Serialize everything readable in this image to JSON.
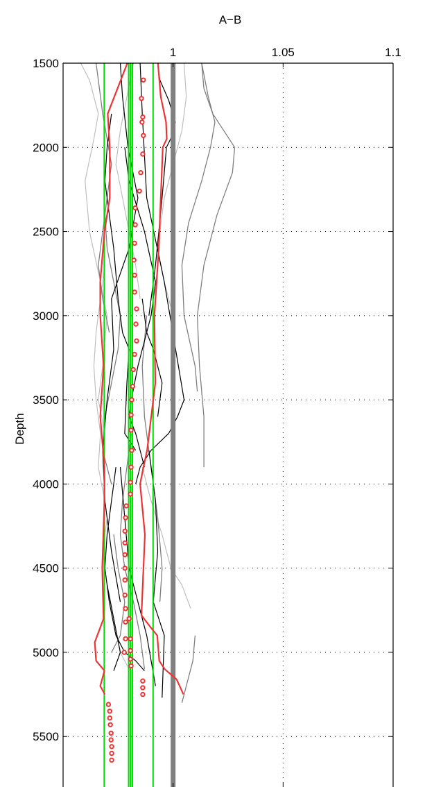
{
  "chart_data": {
    "type": "line",
    "title": "A−B",
    "xlabel": "",
    "ylabel": "Depth",
    "xlim": [
      0.95,
      1.1
    ],
    "ylim": [
      1500,
      5800
    ],
    "y_reversed": true,
    "x_axis_position": "top",
    "x_ticks": [
      1,
      1.05,
      1.1
    ],
    "x_tick_labels": [
      "1",
      "1.05",
      "1.1"
    ],
    "y_ticks": [
      1500,
      2000,
      2500,
      3000,
      3500,
      4000,
      4500,
      5000,
      5500
    ],
    "y_tick_labels": [
      "1500",
      "2000",
      "2500",
      "3000",
      "3500",
      "4000",
      "4500",
      "5000",
      "5500"
    ],
    "grid": true,
    "grid_style": "dotted",
    "colors": {
      "reference": "#808080",
      "green": "#00dd00",
      "red": "#ee3333",
      "black": "#000000",
      "gray": "#7f7f7f",
      "lightgray": "#bfbfbf"
    },
    "reference_line": {
      "x": 1,
      "color": "#808080"
    },
    "green_lines": [
      {
        "x": 0.9687
      },
      {
        "x": 0.9798
      },
      {
        "x": 0.9806
      },
      {
        "x": 0.9815
      },
      {
        "x": 0.9909
      }
    ],
    "red_envelope_left": {
      "x": [
        0.9792,
        0.9703,
        0.9712,
        0.9712,
        0.9688,
        0.9669,
        0.9669,
        0.9684,
        0.9669,
        0.9688,
        0.9688,
        0.9678,
        0.9684,
        0.9644,
        0.965,
        0.9688,
        0.9669,
        0.969
      ],
      "y": [
        1500,
        1800,
        2000,
        2300,
        2500,
        2800,
        3000,
        3300,
        3600,
        3900,
        4100,
        4500,
        4800,
        4940,
        5050,
        5110,
        5200,
        5250
      ]
    },
    "red_envelope_right": {
      "x": [
        0.9931,
        0.9944,
        0.9968,
        0.9971,
        0.9953,
        0.9944,
        0.9935,
        0.9915,
        0.9919,
        0.9882,
        0.9862,
        0.985,
        0.9872,
        0.9856,
        0.9897,
        0.9928,
        0.9937,
        0.9962,
        1.0016,
        1.0047
      ],
      "y": [
        1500,
        1700,
        1850,
        1950,
        2000,
        2300,
        2600,
        3000,
        3400,
        3800,
        3920,
        4000,
        4300,
        4780,
        4850,
        4900,
        5050,
        5100,
        5160,
        5250
      ]
    },
    "red_circle_markers": {
      "x": [
        0.9865,
        0.9856,
        0.9862,
        0.9859,
        0.9865,
        0.9862,
        0.9853,
        0.9847,
        0.9828,
        0.9828,
        0.9825,
        0.9822,
        0.9825,
        0.9825,
        0.9834,
        0.9831,
        0.9834,
        0.9825,
        0.9819,
        0.9816,
        0.9812,
        0.9809,
        0.9809,
        0.9812,
        0.9809,
        0.9806,
        0.9806,
        0.9787,
        0.9784,
        0.9781,
        0.9781,
        0.9781,
        0.9781,
        0.9781,
        0.9781,
        0.9784,
        0.9784,
        0.9784,
        0.9778,
        0.98,
        0.9806,
        0.9806,
        0.9806,
        0.9809,
        0.9862,
        0.9862,
        0.9862,
        0.9706,
        0.9712,
        0.9712,
        0.9715,
        0.9718,
        0.9718,
        0.9721,
        0.9721,
        0.9721
      ],
      "y": [
        1600,
        1710,
        1820,
        1850,
        1930,
        2040,
        2150,
        2260,
        2360,
        2460,
        2570,
        2670,
        2760,
        2860,
        2960,
        3050,
        3150,
        3230,
        3320,
        3420,
        3500,
        3590,
        3680,
        3800,
        3900,
        3990,
        4060,
        4130,
        4200,
        4280,
        4350,
        4420,
        4500,
        4570,
        4660,
        4740,
        4820,
        4920,
        5000,
        4800,
        4920,
        4990,
        5040,
        5080,
        5170,
        5210,
        5250,
        5310,
        5350,
        5390,
        5430,
        5480,
        5520,
        5560,
        5600,
        5640
      ]
    },
    "series_black": [
      {
        "x": [
          0.976,
          0.977,
          0.9795,
          0.984,
          0.98,
          0.972,
          0.973,
          0.97,
          0.968,
          0.969,
          0.972,
          0.976
        ],
        "y": [
          1500,
          1700,
          2000,
          2300,
          2600,
          2900,
          3200,
          3500,
          3800,
          4100,
          4400,
          4700
        ]
      },
      {
        "x": [
          0.993,
          0.994,
          0.998,
          1.001,
          1.0,
          0.997,
          0.995,
          0.992,
          0.989
        ],
        "y": [
          1500,
          1600,
          1720,
          1850,
          1920,
          2000,
          2300,
          2700,
          3000
        ]
      },
      {
        "x": [
          0.985,
          0.986,
          0.988,
          0.996,
          1.005,
          1.002,
          0.998,
          0.99,
          0.985,
          0.983
        ],
        "y": [
          1500,
          1800,
          2300,
          2800,
          3500,
          3600,
          3700,
          3800,
          3900,
          4000
        ]
      },
      {
        "x": [
          0.972,
          0.97,
          0.969,
          0.973,
          0.975,
          0.977,
          0.98,
          0.979,
          0.978,
          0.983
        ],
        "y": [
          1800,
          2000,
          2200,
          2600,
          2900,
          3100,
          3200,
          3400,
          3700,
          3800
        ]
      },
      {
        "x": [
          0.978,
          0.98,
          0.987,
          0.992,
          0.99,
          0.984,
          0.981,
          0.98,
          0.983,
          0.987
        ],
        "y": [
          2000,
          2200,
          2500,
          2800,
          3000,
          3300,
          3500,
          3600,
          3700,
          3900
        ]
      },
      {
        "x": [
          0.986,
          0.988,
          0.991,
          0.995,
          0.993
        ],
        "y": [
          2900,
          3100,
          3200,
          3400,
          3600
        ]
      },
      {
        "x": [
          0.976,
          0.978,
          0.98,
          0.984,
          0.988,
          0.992
        ],
        "y": [
          3900,
          4200,
          4500,
          4700,
          4900,
          5200
        ]
      },
      {
        "x": [
          0.989,
          0.992,
          0.993,
          0.991,
          0.996,
          0.995
        ],
        "y": [
          3800,
          4100,
          4400,
          4700,
          4900,
          5270
        ]
      },
      {
        "x": [
          0.974,
          0.972,
          0.97,
          0.969,
          0.971,
          0.974,
          0.978,
          0.983,
          0.987
        ],
        "y": [
          3900,
          4100,
          4300,
          4500,
          4700,
          4900,
          5000,
          5050,
          5110
        ]
      },
      {
        "x": [
          0.97,
          0.973,
          0.976,
          0.973
        ],
        "y": [
          4600,
          4800,
          5000,
          5110
        ]
      }
    ],
    "series_gray": [
      {
        "x": [
          1.013,
          1.014,
          1.018,
          1.028,
          1.027,
          1.02,
          1.014,
          1.011,
          1.012,
          1.014,
          1.014
        ],
        "y": [
          1500,
          1650,
          1800,
          2000,
          2150,
          2400,
          2700,
          3000,
          3300,
          3600,
          3900
        ]
      },
      {
        "x": [
          1.013,
          1.016,
          1.019,
          1.017,
          1.013,
          1.007,
          1.004,
          1.005,
          1.01,
          1.011
        ],
        "y": [
          1500,
          1700,
          1850,
          2000,
          2200,
          2450,
          2700,
          3000,
          3300,
          3450
        ]
      },
      {
        "x": [
          0.965,
          0.966,
          0.968,
          0.972,
          0.969,
          0.966,
          0.968,
          0.971
        ],
        "y": [
          1500,
          1600,
          1800,
          2100,
          2400,
          2700,
          2900,
          3100
        ]
      },
      {
        "x": [
          0.969,
          0.97,
          0.973,
          0.976,
          0.975,
          0.972,
          0.969,
          0.968,
          0.972
        ],
        "y": [
          2400,
          2600,
          2800,
          3000,
          3200,
          3400,
          3600,
          3800,
          4000
        ]
      },
      {
        "x": [
          0.981,
          0.979,
          0.977,
          0.976,
          0.978,
          0.982,
          0.985,
          0.987
        ],
        "y": [
          3700,
          3900,
          4100,
          4300,
          4500,
          4700,
          4900,
          5100
        ]
      },
      {
        "x": [
          0.988,
          0.986,
          0.987,
          0.99,
          0.993,
          0.995,
          0.994
        ],
        "y": [
          3000,
          3300,
          3600,
          3900,
          4200,
          4500,
          4700
        ]
      },
      {
        "x": [
          1.01,
          1.009,
          1.006,
          1.004
        ],
        "y": [
          4900,
          5050,
          5200,
          5300
        ]
      },
      {
        "x": [
          0.973,
          0.975,
          0.978,
          0.976,
          0.972
        ],
        "y": [
          4300,
          4500,
          4700,
          4900,
          5000
        ]
      }
    ],
    "series_lightgray": [
      {
        "x": [
          0.958,
          0.962,
          0.966,
          0.964,
          0.96,
          0.962,
          0.967,
          0.97,
          0.968,
          0.966,
          0.969
        ],
        "y": [
          1500,
          1600,
          1800,
          1950,
          2200,
          2500,
          2800,
          3000,
          3300,
          3500,
          3700
        ]
      },
      {
        "x": [
          1.005,
          1.006,
          1.004,
          1.0,
          0.996,
          0.993,
          0.996,
          0.999
        ],
        "y": [
          1500,
          1700,
          1900,
          2100,
          2300,
          2600,
          2800,
          2950
        ]
      },
      {
        "x": [
          0.982,
          0.979,
          0.976,
          0.974,
          0.977,
          0.98,
          0.983,
          0.985
        ],
        "y": [
          1500,
          1700,
          1900,
          2100,
          2300,
          2500,
          2700,
          2900
        ]
      },
      {
        "x": [
          0.969,
          0.967,
          0.965,
          0.964,
          0.965,
          0.967,
          0.966,
          0.969
        ],
        "y": [
          2700,
          2900,
          3100,
          3300,
          3500,
          3700,
          3900,
          4100
        ]
      },
      {
        "x": [
          0.986,
          0.99,
          0.995,
          0.999,
          1.004,
          1.008
        ],
        "y": [
          3900,
          4100,
          4300,
          4500,
          4600,
          4740
        ]
      },
      {
        "x": [
          0.97,
          0.968,
          0.97,
          0.973,
          0.976,
          0.98
        ],
        "y": [
          4200,
          4400,
          4600,
          4800,
          5000,
          5100
        ]
      }
    ]
  }
}
